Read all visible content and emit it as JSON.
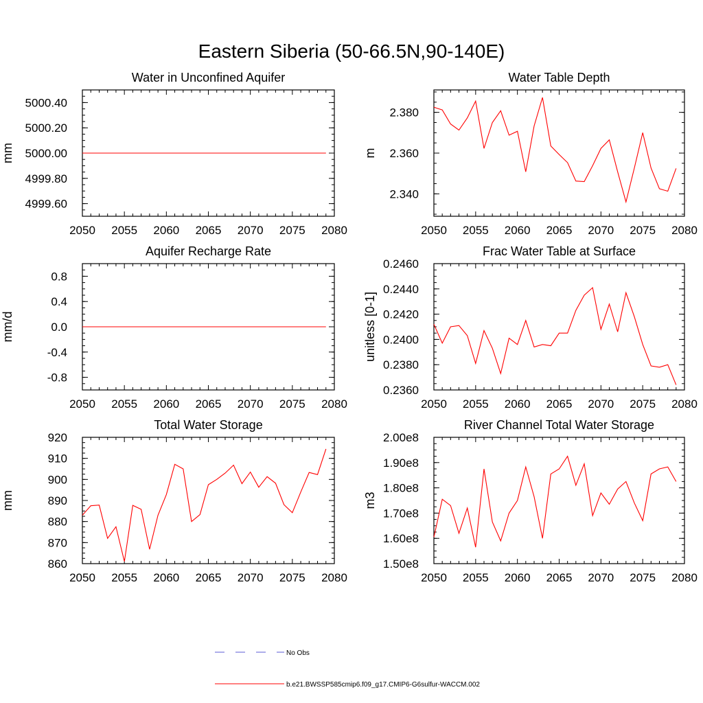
{
  "figure": {
    "title": "Eastern Siberia (50-66.5N,90-140E)"
  },
  "legend": {
    "entries": [
      {
        "label": "No Obs",
        "color": "#5b5bd6",
        "dash": true
      },
      {
        "label": "b.e21.BWSSP585cmip6.f09_g17.CMIP6-G6sulfur-WACCM.002",
        "color": "#ff0000",
        "dash": false
      }
    ]
  },
  "chart_data": [
    {
      "type": "line",
      "title": "Water in Unconfined Aquifer",
      "ylabel": "mm",
      "xlim": [
        2050,
        2080
      ],
      "ylim": [
        4999.5,
        5000.5
      ],
      "xticks": [
        "2050",
        "2055",
        "2060",
        "2065",
        "2070",
        "2075",
        "2080"
      ],
      "yticks": [
        "4999.60",
        "4999.80",
        "5000.00",
        "5000.20",
        "5000.40"
      ],
      "x": [
        2050,
        2079
      ],
      "series": [
        {
          "color": "#ff0000",
          "values": [
            5000.0,
            5000.0
          ]
        }
      ]
    },
    {
      "type": "line",
      "title": "Water Table Depth",
      "ylabel": "m",
      "xlim": [
        2050,
        2080
      ],
      "ylim": [
        2.329,
        2.391
      ],
      "xticks": [
        "2050",
        "2055",
        "2060",
        "2065",
        "2070",
        "2075",
        "2080"
      ],
      "yticks": [
        "2.340",
        "2.360",
        "2.380"
      ],
      "x": [
        2050,
        2051,
        2052,
        2053,
        2054,
        2055,
        2056,
        2057,
        2058,
        2059,
        2060,
        2061,
        2062,
        2063,
        2064,
        2065,
        2066,
        2067,
        2068,
        2069,
        2070,
        2071,
        2072,
        2073,
        2074,
        2075,
        2076,
        2077,
        2078,
        2079
      ],
      "series": [
        {
          "color": "#ff0000",
          "values": [
            2.3825,
            2.3812,
            2.3743,
            2.3713,
            2.3773,
            2.3855,
            2.3623,
            2.375,
            2.3808,
            2.3688,
            2.3707,
            2.3508,
            2.3733,
            2.3873,
            2.3635,
            2.3593,
            2.3553,
            2.3463,
            2.346,
            2.3538,
            2.3623,
            2.3665,
            2.3508,
            2.336,
            2.3527,
            2.37,
            2.3527,
            2.3425,
            2.3413,
            2.3525
          ]
        }
      ]
    },
    {
      "type": "line",
      "title": "Aquifer Recharge Rate",
      "ylabel": "mm/d",
      "xlim": [
        2050,
        2080
      ],
      "ylim": [
        -1.0,
        1.0
      ],
      "xticks": [
        "2050",
        "2055",
        "2060",
        "2065",
        "2070",
        "2075",
        "2080"
      ],
      "yticks": [
        "-0.8",
        "-0.4",
        "0.0",
        "0.4",
        "0.8"
      ],
      "x": [
        2050,
        2079
      ],
      "series": [
        {
          "color": "#ff0000",
          "values": [
            0.0,
            0.0
          ]
        }
      ]
    },
    {
      "type": "line",
      "title": "Frac Water Table at Surface",
      "ylabel": "unitless [0-1]",
      "xlim": [
        2050,
        2080
      ],
      "ylim": [
        0.236,
        0.246
      ],
      "xticks": [
        "2050",
        "2055",
        "2060",
        "2065",
        "2070",
        "2075",
        "2080"
      ],
      "yticks": [
        "0.2360",
        "0.2380",
        "0.2400",
        "0.2420",
        "0.2440",
        "0.2460"
      ],
      "x": [
        2050,
        2051,
        2052,
        2053,
        2054,
        2055,
        2056,
        2057,
        2058,
        2059,
        2060,
        2061,
        2062,
        2063,
        2064,
        2065,
        2066,
        2067,
        2068,
        2069,
        2070,
        2071,
        2072,
        2073,
        2074,
        2075,
        2076,
        2077,
        2078,
        2079
      ],
      "series": [
        {
          "color": "#ff0000",
          "values": [
            0.2412,
            0.2397,
            0.241,
            0.2411,
            0.2403,
            0.2381,
            0.2407,
            0.2393,
            0.2373,
            0.2401,
            0.2396,
            0.2415,
            0.2394,
            0.2396,
            0.2395,
            0.2405,
            0.2405,
            0.2423,
            0.2435,
            0.2441,
            0.2408,
            0.2428,
            0.2406,
            0.2437,
            0.2418,
            0.2396,
            0.2379,
            0.2378,
            0.238,
            0.2364
          ]
        }
      ]
    },
    {
      "type": "line",
      "title": "Total Water Storage",
      "ylabel": "mm",
      "xlim": [
        2050,
        2080
      ],
      "ylim": [
        860,
        920
      ],
      "xticks": [
        "2050",
        "2055",
        "2060",
        "2065",
        "2070",
        "2075",
        "2080"
      ],
      "yticks": [
        "860",
        "870",
        "880",
        "890",
        "900",
        "910",
        "920"
      ],
      "x": [
        2050,
        2051,
        2052,
        2053,
        2054,
        2055,
        2056,
        2057,
        2058,
        2059,
        2060,
        2061,
        2062,
        2063,
        2064,
        2065,
        2066,
        2067,
        2068,
        2069,
        2070,
        2071,
        2072,
        2073,
        2074,
        2075,
        2076,
        2077,
        2078,
        2079
      ],
      "series": [
        {
          "color": "#ff0000",
          "values": [
            883.0,
            887.5,
            887.8,
            872.0,
            877.5,
            861.0,
            887.7,
            885.8,
            866.8,
            883.0,
            892.8,
            907.2,
            905.0,
            880.0,
            883.3,
            897.5,
            900.0,
            903.0,
            906.8,
            898.0,
            903.5,
            896.3,
            901.3,
            898.2,
            888.0,
            884.2,
            894.0,
            903.3,
            902.3,
            914.5
          ]
        }
      ]
    },
    {
      "type": "line",
      "title": "River Channel Total Water Storage",
      "ylabel": "m3",
      "xlim": [
        2050,
        2080
      ],
      "ylim": [
        150000000,
        200000000
      ],
      "xticks": [
        "2050",
        "2055",
        "2060",
        "2065",
        "2070",
        "2075",
        "2080"
      ],
      "yticks": [
        "1.50e8",
        "1.60e8",
        "1.70e8",
        "1.80e8",
        "1.90e8",
        "2.00e8"
      ],
      "x": [
        2050,
        2051,
        2052,
        2053,
        2054,
        2055,
        2056,
        2057,
        2058,
        2059,
        2060,
        2061,
        2062,
        2063,
        2064,
        2065,
        2066,
        2067,
        2068,
        2069,
        2070,
        2071,
        2072,
        2073,
        2074,
        2075,
        2076,
        2077,
        2078,
        2079
      ],
      "series": [
        {
          "color": "#ff0000",
          "values": [
            160500000,
            175500000,
            173000000,
            162000000,
            172000000,
            156500000,
            187500000,
            166500000,
            159000000,
            170000000,
            175000000,
            188300000,
            176500000,
            160000000,
            185500000,
            187500000,
            192500000,
            181000000,
            189500000,
            169000000,
            178000000,
            173500000,
            179500000,
            182500000,
            174000000,
            167000000,
            185500000,
            187500000,
            188300000,
            182500000
          ]
        }
      ]
    }
  ]
}
